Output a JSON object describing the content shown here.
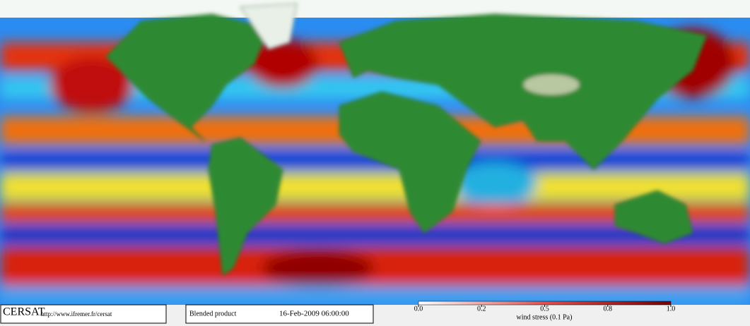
{
  "logo": "CERSAT",
  "url": "http://www.ifremer.fr/cersat",
  "product": "Blended product",
  "timestamp": "16-Feb-2009 06:00:00",
  "colorbar": {
    "label": "wind stress (0.1 Pa)",
    "lim": [
      0,
      1
    ],
    "ticks": [
      {
        "value": 0,
        "label": "0.0"
      },
      0.2,
      0.5,
      0.8,
      {
        "value": 1,
        "label": "1.0"
      }
    ]
  }
}
